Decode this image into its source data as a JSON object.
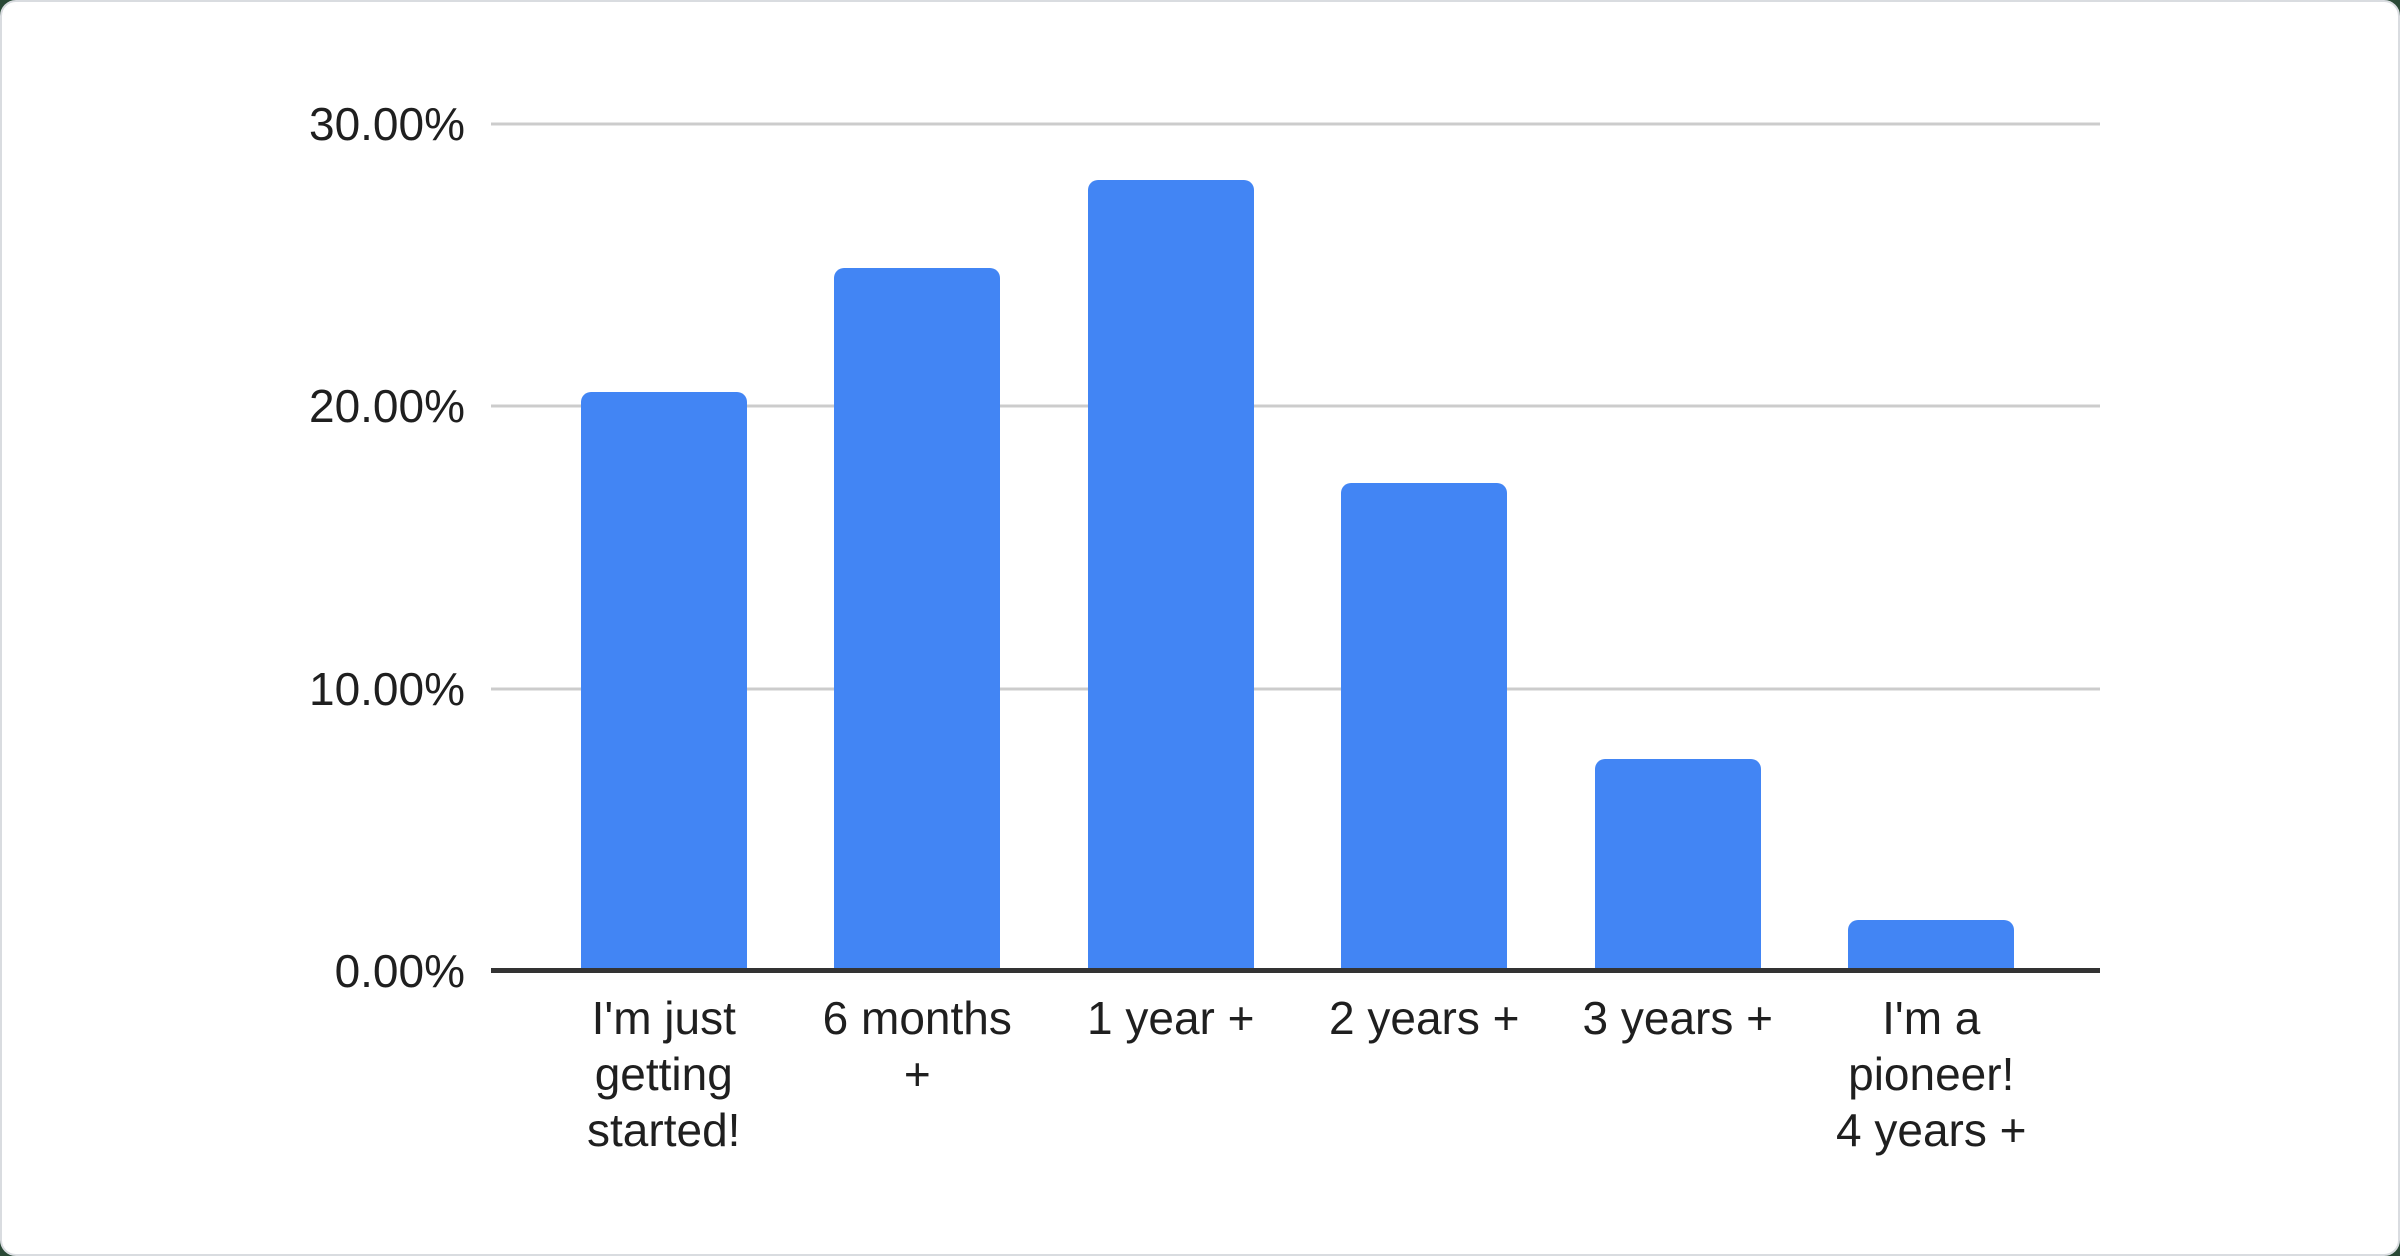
{
  "page": {
    "background_color": "#2a4936",
    "card": {
      "background": "#ffffff",
      "border_color": "#d9dce0"
    }
  },
  "chart_data": {
    "type": "bar",
    "title": "",
    "xlabel": "",
    "ylabel": "",
    "categories": [
      "I'm just getting started!",
      "6 months +",
      "1 year +",
      "2 years +",
      "3 years +",
      "I'm a pioneer! 4 years +"
    ],
    "display_labels": [
      "I'm just\ngetting\nstarted!",
      "6 months\n+",
      "1 year +",
      "2 years +",
      "3 years +",
      "I'm a\npioneer!\n4 years +"
    ],
    "values": [
      20.5,
      24.9,
      28.0,
      17.3,
      7.5,
      1.8
    ],
    "unit": "%",
    "ylim": [
      0,
      30
    ],
    "y_ticks": [
      {
        "value": 0,
        "label": "0.00%"
      },
      {
        "value": 10,
        "label": "10.00%"
      },
      {
        "value": 20,
        "label": "20.00%"
      },
      {
        "value": 30,
        "label": "30.00%"
      }
    ],
    "grid": true,
    "legend": "none",
    "colors": {
      "bar": "#4285f4",
      "gridline": "#cccccc",
      "axis": "#333333",
      "tick_text": "#1f1f1f"
    }
  }
}
